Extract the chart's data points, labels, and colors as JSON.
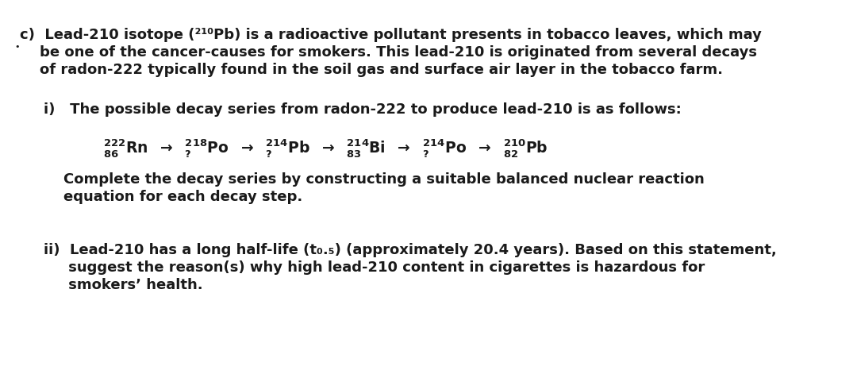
{
  "bg_color": "#ffffff",
  "text_color": "#1a1a1a",
  "figsize": [
    10.8,
    4.77
  ],
  "dpi": 100,
  "fontsize_main": 13.0,
  "fontsize_decay": 13.5,
  "font_weight": "bold",
  "lines_c": [
    "c)  Lead-210 isotope (²¹⁰Pb) is a radioactive pollutant presents in tobacco leaves, which may",
    "    be one of the cancer-causes for smokers. This lead-210 is originated from several decays",
    "    of radon-222 typically found in the soil gas and surface air layer in the tobacco farm."
  ],
  "line_i": "i)   The possible decay series from radon-222 to produce lead-210 is as follows:",
  "line_complete1": "Complete the decay series by constructing a suitable balanced nuclear reaction",
  "line_complete2": "equation for each decay step.",
  "lines_ii": [
    "ii)  Lead-210 has a long half-life (t₀.₅) (approximately 20.4 years). Based on this statement,",
    "     suggest the reason(s) why high lead-210 content in cigarettes is hazardous for",
    "     smokers’ health."
  ]
}
